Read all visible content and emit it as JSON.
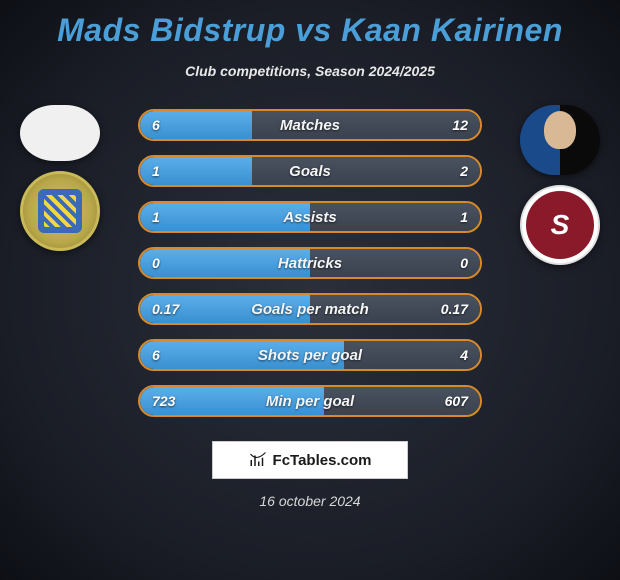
{
  "title": "Mads Bidstrup vs Kaan Kairinen",
  "subtitle": "Club competitions, Season 2024/2025",
  "colors": {
    "title": "#4a9fd8",
    "bar_border": "#d88a2a",
    "bar_left_fill": "#4a9fe0",
    "bar_right_fill": "#444c5a",
    "background_inner": "#2a2f3a",
    "background_outer": "#0d0f15"
  },
  "bars": [
    {
      "label": "Matches",
      "left": "6",
      "right": "12",
      "left_pct": 33,
      "right_pct": 67
    },
    {
      "label": "Goals",
      "left": "1",
      "right": "2",
      "left_pct": 33,
      "right_pct": 67
    },
    {
      "label": "Assists",
      "left": "1",
      "right": "1",
      "left_pct": 50,
      "right_pct": 50
    },
    {
      "label": "Hattricks",
      "left": "0",
      "right": "0",
      "left_pct": 50,
      "right_pct": 50
    },
    {
      "label": "Goals per match",
      "left": "0.17",
      "right": "0.17",
      "left_pct": 50,
      "right_pct": 50
    },
    {
      "label": "Shots per goal",
      "left": "6",
      "right": "4",
      "left_pct": 60,
      "right_pct": 40
    },
    {
      "label": "Min per goal",
      "left": "723",
      "right": "607",
      "left_pct": 54,
      "right_pct": 46
    }
  ],
  "footer": {
    "brand": "FcTables.com"
  },
  "date": "16 october 2024",
  "left_player": {
    "name": "Mads Bidstrup"
  },
  "right_player": {
    "name": "Kaan Kairinen"
  },
  "left_club": {
    "name": "club-1"
  },
  "right_club": {
    "name": "AC Sparta Praha"
  }
}
